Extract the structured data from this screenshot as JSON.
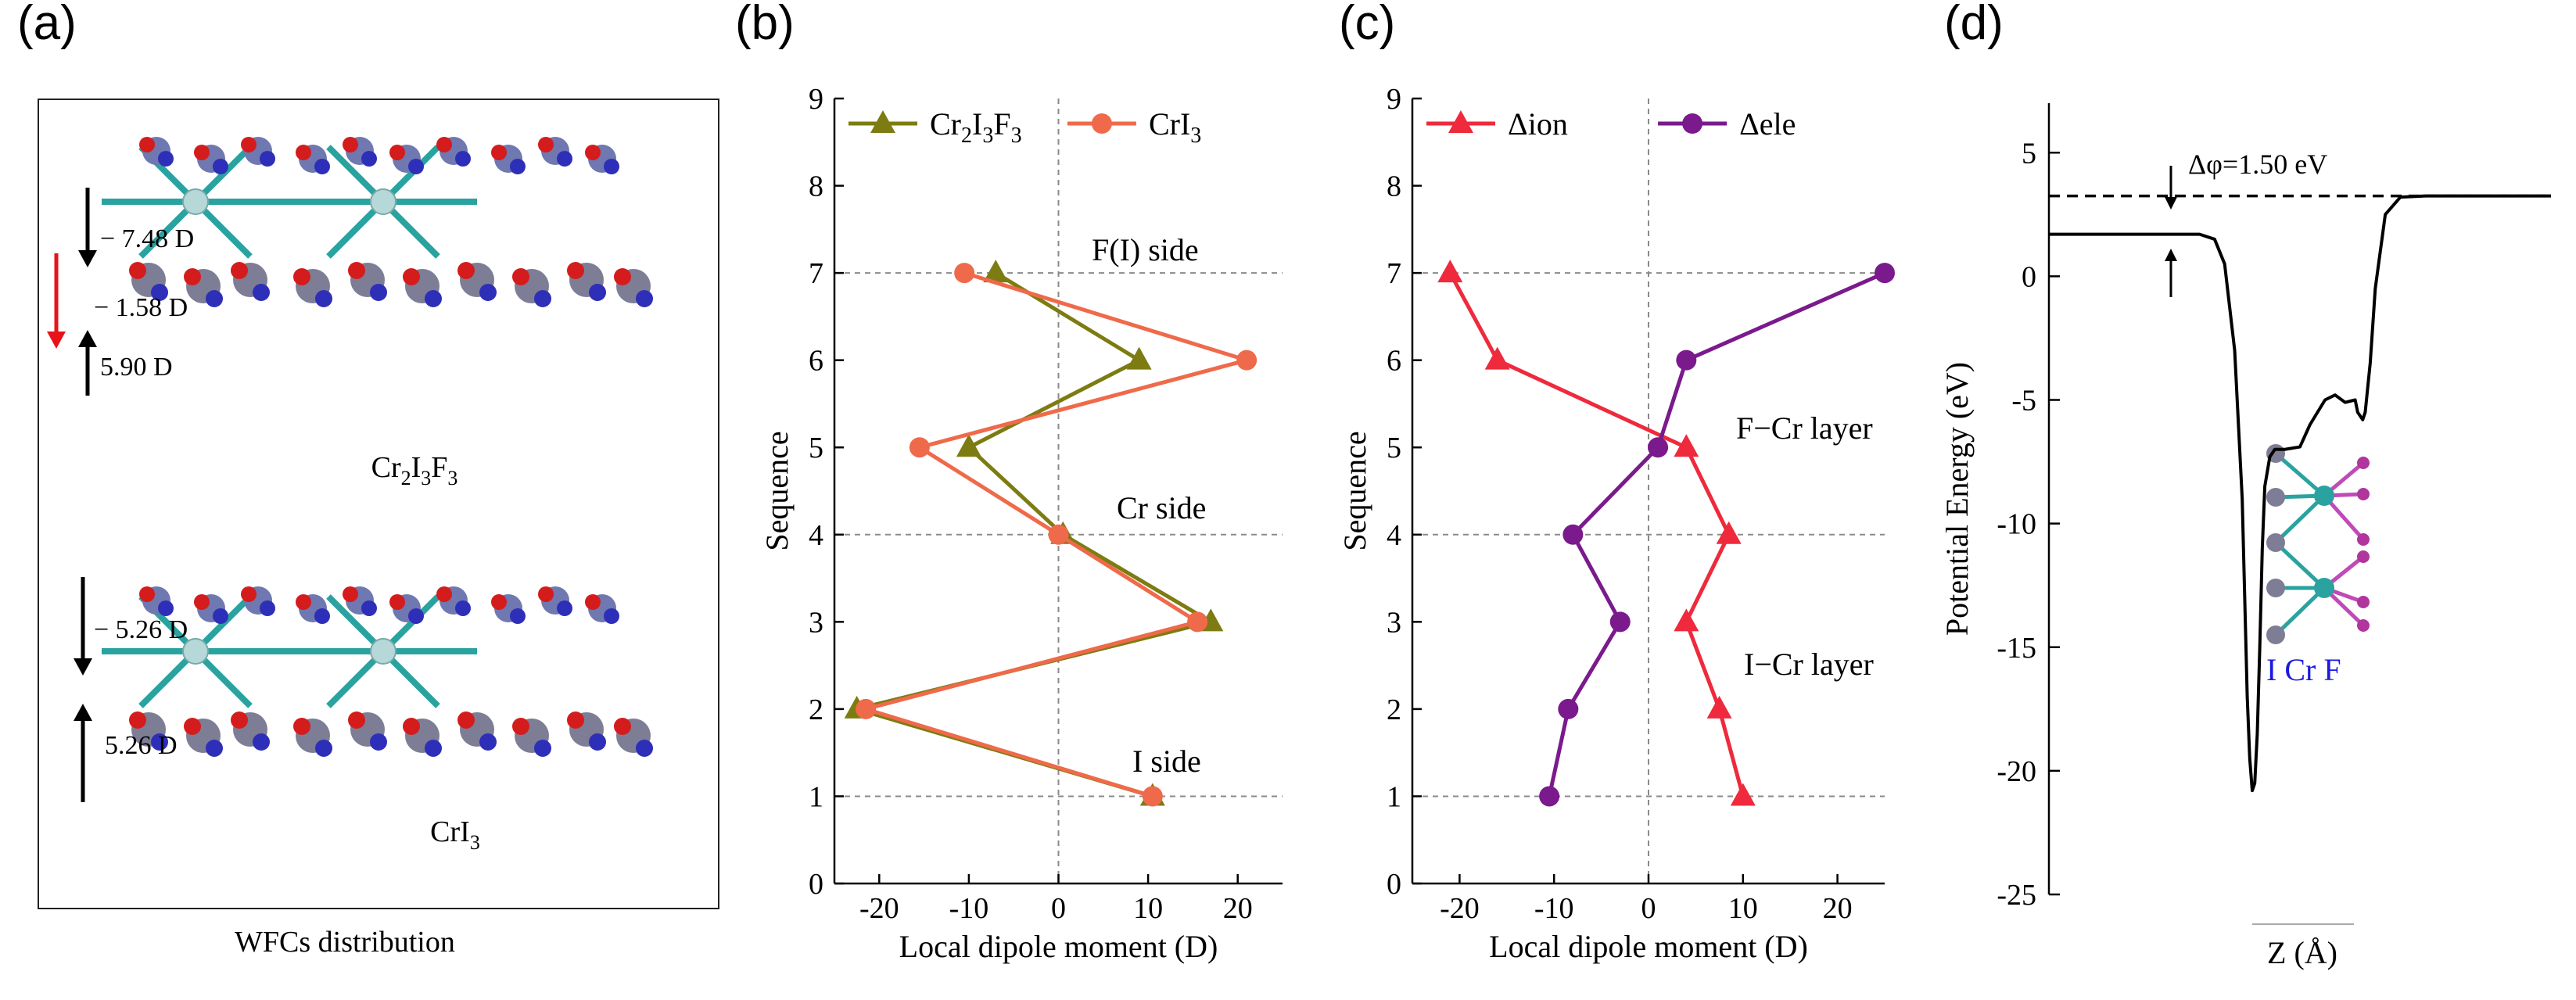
{
  "panels": {
    "a": {
      "label": "(a)",
      "caption": "WFCs distribution",
      "top_structure": {
        "name_parts": [
          "Cr",
          "2",
          "I",
          "3",
          "F",
          "3"
        ],
        "dipoles": [
          "− 7.48 D",
          "− 1.58 D",
          "5.90 D"
        ]
      },
      "bottom_structure": {
        "name_parts": [
          "CrI",
          "3"
        ],
        "dipoles": [
          "− 5.26 D",
          "5.26 D"
        ]
      }
    },
    "b": {
      "label": "(b)",
      "annotations": [
        "F(I) side",
        "Cr side",
        "I side"
      ]
    },
    "c": {
      "label": "(c)",
      "annotations": [
        "F−Cr layer",
        "I−Cr layer"
      ]
    },
    "d": {
      "label": "(d)",
      "annotation": "Δφ=1.50 eV",
      "inset_labels": "I Cr F"
    }
  },
  "chart_data": [
    {
      "panel": "b",
      "type": "line",
      "title": "",
      "xlabel": "Local dipole moment (D)",
      "ylabel": "Sequence",
      "xlim": [
        -25,
        25
      ],
      "ylim": [
        0,
        9
      ],
      "xticks": [
        -20,
        -10,
        0,
        10,
        20
      ],
      "yticks": [
        0,
        1,
        2,
        3,
        4,
        5,
        6,
        7,
        8,
        9
      ],
      "reference_lines": {
        "x": [
          0
        ],
        "y": [
          1,
          4,
          7
        ]
      },
      "series": [
        {
          "name": "Cr2I3F3",
          "legend_parts": [
            "Cr",
            "2",
            "I",
            "3",
            "F",
            "3"
          ],
          "color": "#7c7c12",
          "marker": "triangle",
          "x": [
            10.5,
            -22.5,
            17,
            0.5,
            -10,
            9,
            -7
          ],
          "y": [
            1,
            2,
            3,
            4,
            5,
            6,
            7
          ]
        },
        {
          "name": "CrI3",
          "legend_parts": [
            "CrI",
            "3"
          ],
          "color": "#ef6a4a",
          "marker": "circle",
          "x": [
            10.5,
            -21.5,
            15.5,
            0,
            -15.5,
            21,
            -10.5
          ],
          "y": [
            1,
            2,
            3,
            4,
            5,
            6,
            7
          ]
        }
      ]
    },
    {
      "panel": "c",
      "type": "line",
      "title": "",
      "xlabel": "Local dipole moment (D)",
      "ylabel": "Sequence",
      "xlim": [
        -25,
        25
      ],
      "ylim": [
        0,
        9
      ],
      "xticks": [
        -20,
        -10,
        0,
        10,
        20
      ],
      "yticks": [
        0,
        1,
        2,
        3,
        4,
        5,
        6,
        7,
        8,
        9
      ],
      "reference_lines": {
        "x": [
          0
        ],
        "y": [
          1,
          4,
          7
        ]
      },
      "series": [
        {
          "name": "Δion",
          "legend_parts": [
            "Δion"
          ],
          "color": "#ee2a3c",
          "marker": "triangle",
          "x": [
            10,
            7.5,
            4,
            8.5,
            4,
            -16,
            -21
          ],
          "y": [
            1,
            2,
            3,
            4,
            5,
            6,
            7
          ]
        },
        {
          "name": "Δele",
          "legend_parts": [
            "Δele"
          ],
          "color": "#7a1a8c",
          "marker": "circle",
          "x": [
            -10.5,
            -8.5,
            -3,
            -8,
            1,
            4,
            25
          ],
          "y": [
            1,
            2,
            3,
            4,
            5,
            6,
            7
          ]
        }
      ]
    },
    {
      "panel": "d",
      "type": "line",
      "title": "",
      "xlabel": "Z (Å)",
      "ylabel": "Potential Energy (eV)",
      "ylim": [
        -25,
        7
      ],
      "yticks": [
        -25,
        -20,
        -15,
        -10,
        -5,
        0,
        5
      ],
      "xrange_relative": [
        0,
        1
      ],
      "series": [
        {
          "name": "potential",
          "color": "#000000",
          "x": [
            0,
            0.2,
            0.3,
            0.33,
            0.35,
            0.37,
            0.385,
            0.39,
            0.395,
            0.4,
            0.405,
            0.41,
            0.415,
            0.42,
            0.425,
            0.43,
            0.44,
            0.45,
            0.47,
            0.5,
            0.52,
            0.55,
            0.57,
            0.59,
            0.61,
            0.615,
            0.625,
            0.63,
            0.64,
            0.65,
            0.67,
            0.7,
            0.75,
            1.0
          ],
          "y": [
            1.7,
            1.7,
            1.7,
            1.5,
            0.5,
            -3,
            -9,
            -13,
            -17,
            -19.5,
            -20.8,
            -20.5,
            -18.5,
            -15,
            -11,
            -8.5,
            -7.3,
            -7,
            -7,
            -6.9,
            -6,
            -5,
            -4.8,
            -5.1,
            -5,
            -5.5,
            -5.8,
            -5.5,
            -3.5,
            -0.5,
            2.5,
            3.2,
            3.25,
            3.25
          ]
        }
      ],
      "reference_lines": {
        "y": [
          3.25
        ]
      }
    }
  ]
}
